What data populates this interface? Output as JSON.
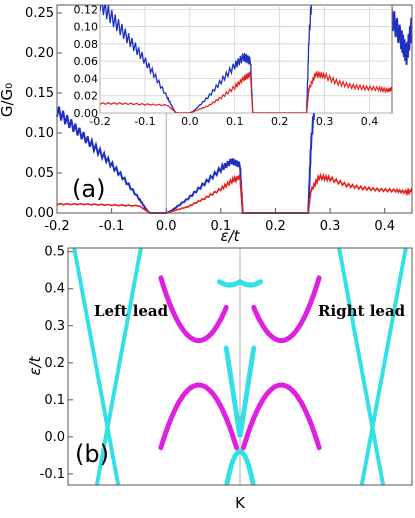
{
  "chart_data": [
    {
      "type": "line",
      "panel_label": "(a)",
      "xlabel": "ε/t",
      "ylabel": "G/G₀",
      "xlim": [
        -0.2,
        0.45
      ],
      "ylim": [
        0,
        0.26
      ],
      "xticks": [
        "-0.2",
        "-0.1",
        "0.0",
        "0.1",
        "0.2",
        "0.3",
        "0.4"
      ],
      "xtick_values": [
        -0.2,
        -0.1,
        0.0,
        0.1,
        0.2,
        0.3,
        0.4
      ],
      "yticks": [
        "0.00",
        "0.05",
        "0.10",
        "0.15",
        "0.20",
        "0.25"
      ],
      "ytick_values": [
        0,
        0.05,
        0.1,
        0.15,
        0.2,
        0.25
      ],
      "series": [
        {
          "color": "#1f2fbf",
          "x": [
            -0.2,
            -0.17,
            -0.14,
            -0.11,
            -0.08,
            -0.05,
            -0.035,
            -0.03,
            0.0,
            0.01,
            0.04,
            0.07,
            0.1,
            0.12,
            0.135,
            0.14,
            0.26,
            0.265,
            0.275,
            0.29,
            0.32,
            0.35,
            0.37,
            0.39,
            0.4,
            0.41,
            0.43,
            0.44,
            0.45
          ],
          "y": [
            0.128,
            0.108,
            0.088,
            0.068,
            0.045,
            0.018,
            0.003,
            0.0,
            0.0,
            0.003,
            0.018,
            0.037,
            0.055,
            0.065,
            0.06,
            0.0,
            0.0,
            0.085,
            0.162,
            0.172,
            0.193,
            0.218,
            0.238,
            0.252,
            0.254,
            0.25,
            0.218,
            0.197,
            0.235
          ]
        },
        {
          "color": "#e8201a",
          "x": [
            -0.2,
            -0.15,
            -0.1,
            -0.05,
            -0.03,
            0.0,
            0.01,
            0.04,
            0.07,
            0.1,
            0.12,
            0.135,
            0.14,
            0.26,
            0.265,
            0.28,
            0.3,
            0.33,
            0.36,
            0.39,
            0.42,
            0.44,
            0.45
          ],
          "y": [
            0.011,
            0.011,
            0.01,
            0.009,
            0.0,
            0.0,
            0.002,
            0.008,
            0.018,
            0.03,
            0.04,
            0.045,
            0.0,
            0.0,
            0.028,
            0.045,
            0.043,
            0.035,
            0.031,
            0.029,
            0.028,
            0.026,
            0.028
          ]
        }
      ],
      "inset": {
        "xlim": [
          -0.2,
          0.45
        ],
        "ylim": [
          0,
          0.125
        ],
        "xticks": [
          "-0.2",
          "-0.1",
          "0.0",
          "0.1",
          "0.2",
          "0.3",
          "0.4"
        ],
        "xtick_values": [
          -0.2,
          -0.1,
          0.0,
          0.1,
          0.2,
          0.3,
          0.4
        ],
        "yticks": [
          "0.00",
          "0.02",
          "0.04",
          "0.06",
          "0.08",
          "0.10",
          "0.12"
        ],
        "ytick_values": [
          0,
          0.02,
          0.04,
          0.06,
          0.08,
          0.1,
          0.12
        ],
        "grid": true
      }
    },
    {
      "type": "line",
      "panel_label": "(b)",
      "xlabel": "K",
      "ylabel": "ε/t",
      "xlim": [
        0,
        1
      ],
      "ylim": [
        -0.13,
        0.51
      ],
      "yticks": [
        "-0.1",
        "0.0",
        "0.1",
        "0.2",
        "0.3",
        "0.4",
        "0.5"
      ],
      "ytick_values": [
        -0.1,
        0.0,
        0.1,
        0.2,
        0.3,
        0.4,
        0.5
      ],
      "annotations": [
        "Left lead",
        "Right lead"
      ],
      "colors": {
        "lead_bands": "#33e0e6",
        "central_bands": "#e020e0"
      }
    }
  ]
}
